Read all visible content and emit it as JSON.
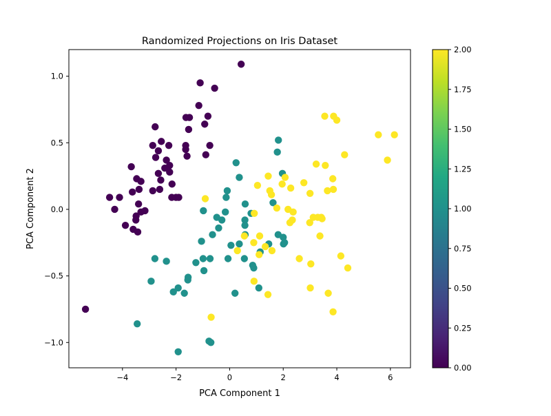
{
  "chart_data": {
    "type": "scatter",
    "title": "Randomized Projections on Iris Dataset",
    "xlabel": "PCA Component 1",
    "ylabel": "PCA Component 2",
    "xlim": [
      -6.0,
      6.75
    ],
    "ylim": [
      -1.19,
      1.2
    ],
    "xticks": [
      -4,
      -2,
      0,
      2,
      4,
      6
    ],
    "xtick_labels": [
      "−4",
      "−2",
      "0",
      "2",
      "4",
      "6"
    ],
    "yticks": [
      -1.0,
      -0.5,
      0.0,
      0.5,
      1.0
    ],
    "ytick_labels": [
      "−1.0",
      "−0.5",
      "0.0",
      "0.5",
      "1.0"
    ],
    "grid": false,
    "legend": "none",
    "colormap": "viridis",
    "colorbar": {
      "range": [
        0,
        2
      ],
      "ticks": [
        0,
        0.25,
        0.5,
        0.75,
        1.0,
        1.25,
        1.5,
        1.75,
        2.0
      ],
      "tick_labels": [
        "0.00",
        "0.25",
        "0.50",
        "0.75",
        "1.00",
        "1.25",
        "1.50",
        "1.75",
        "2.00"
      ]
    },
    "color_values": {
      "0": "#440154",
      "1": "#21918c",
      "2": "#fde725"
    },
    "points": [
      {
        "x": -5.38,
        "y": -0.75,
        "c": 0
      },
      {
        "x": -4.48,
        "y": 0.09,
        "c": 0
      },
      {
        "x": -4.11,
        "y": 0.09,
        "c": 0
      },
      {
        "x": -4.29,
        "y": 0.0,
        "c": 0
      },
      {
        "x": -3.67,
        "y": 0.32,
        "c": 0
      },
      {
        "x": -3.63,
        "y": 0.13,
        "c": 0
      },
      {
        "x": -3.47,
        "y": 0.23,
        "c": 0
      },
      {
        "x": -3.31,
        "y": 0.21,
        "c": 0
      },
      {
        "x": -3.38,
        "y": 0.15,
        "c": 0
      },
      {
        "x": -3.4,
        "y": 0.04,
        "c": 0
      },
      {
        "x": -3.31,
        "y": -0.02,
        "c": 0
      },
      {
        "x": -3.16,
        "y": -0.01,
        "c": 0
      },
      {
        "x": -3.49,
        "y": -0.05,
        "c": 0
      },
      {
        "x": -3.5,
        "y": -0.08,
        "c": 0
      },
      {
        "x": -3.89,
        "y": -0.12,
        "c": 0
      },
      {
        "x": -3.6,
        "y": -0.15,
        "c": 0
      },
      {
        "x": -3.43,
        "y": -0.17,
        "c": 0
      },
      {
        "x": -2.87,
        "y": 0.14,
        "c": 0
      },
      {
        "x": -2.61,
        "y": 0.15,
        "c": 0
      },
      {
        "x": -2.57,
        "y": 0.22,
        "c": 0
      },
      {
        "x": -2.66,
        "y": 0.27,
        "c": 0
      },
      {
        "x": -2.42,
        "y": 0.31,
        "c": 0
      },
      {
        "x": -2.24,
        "y": 0.28,
        "c": 0
      },
      {
        "x": -2.24,
        "y": 0.33,
        "c": 0
      },
      {
        "x": -2.36,
        "y": 0.37,
        "c": 0
      },
      {
        "x": -2.76,
        "y": 0.39,
        "c": 0
      },
      {
        "x": -2.66,
        "y": 0.44,
        "c": 0
      },
      {
        "x": -2.87,
        "y": 0.48,
        "c": 0
      },
      {
        "x": -2.55,
        "y": 0.51,
        "c": 0
      },
      {
        "x": -2.27,
        "y": 0.48,
        "c": 0
      },
      {
        "x": -2.78,
        "y": 0.62,
        "c": 0
      },
      {
        "x": -2.15,
        "y": 0.19,
        "c": 0
      },
      {
        "x": -2.16,
        "y": 0.09,
        "c": 0
      },
      {
        "x": -2.0,
        "y": 0.09,
        "c": 0
      },
      {
        "x": -1.9,
        "y": 0.09,
        "c": 0
      },
      {
        "x": -1.64,
        "y": 0.45,
        "c": 0
      },
      {
        "x": -1.64,
        "y": 0.48,
        "c": 0
      },
      {
        "x": -1.59,
        "y": 0.4,
        "c": 0
      },
      {
        "x": -1.63,
        "y": 0.69,
        "c": 0
      },
      {
        "x": -1.5,
        "y": 0.69,
        "c": 0
      },
      {
        "x": -1.53,
        "y": 0.6,
        "c": 0
      },
      {
        "x": -1.15,
        "y": 0.78,
        "c": 0
      },
      {
        "x": -1.1,
        "y": 0.95,
        "c": 0
      },
      {
        "x": -0.93,
        "y": 0.64,
        "c": 0
      },
      {
        "x": -0.81,
        "y": 0.7,
        "c": 0
      },
      {
        "x": -0.89,
        "y": 0.41,
        "c": 0
      },
      {
        "x": -0.74,
        "y": 0.48,
        "c": 0
      },
      {
        "x": -0.56,
        "y": 0.91,
        "c": 0
      },
      {
        "x": 0.43,
        "y": 1.09,
        "c": 0
      },
      {
        "x": -3.45,
        "y": -0.86,
        "c": 1
      },
      {
        "x": -2.93,
        "y": -0.54,
        "c": 1
      },
      {
        "x": -2.79,
        "y": -0.37,
        "c": 1
      },
      {
        "x": -2.36,
        "y": -0.39,
        "c": 1
      },
      {
        "x": -2.1,
        "y": -0.62,
        "c": 1
      },
      {
        "x": -1.92,
        "y": -0.59,
        "c": 1
      },
      {
        "x": -1.92,
        "y": -1.07,
        "c": 1
      },
      {
        "x": -1.69,
        "y": -0.63,
        "c": 1
      },
      {
        "x": -1.56,
        "y": -0.53,
        "c": 1
      },
      {
        "x": -1.55,
        "y": -0.51,
        "c": 1
      },
      {
        "x": -1.26,
        "y": -0.4,
        "c": 1
      },
      {
        "x": -1.05,
        "y": -0.24,
        "c": 1
      },
      {
        "x": -0.99,
        "y": -0.37,
        "c": 1
      },
      {
        "x": -0.96,
        "y": -0.46,
        "c": 1
      },
      {
        "x": -0.98,
        "y": -0.01,
        "c": 1
      },
      {
        "x": -0.77,
        "y": -0.99,
        "c": 1
      },
      {
        "x": -0.7,
        "y": -1.0,
        "c": 1
      },
      {
        "x": -0.73,
        "y": -0.37,
        "c": 1
      },
      {
        "x": -0.64,
        "y": -0.19,
        "c": 1
      },
      {
        "x": -0.48,
        "y": -0.06,
        "c": 1
      },
      {
        "x": -0.41,
        "y": -0.14,
        "c": 1
      },
      {
        "x": -0.29,
        "y": -0.08,
        "c": 1
      },
      {
        "x": -0.16,
        "y": -0.02,
        "c": 1
      },
      {
        "x": -0.13,
        "y": 0.09,
        "c": 1
      },
      {
        "x": -0.09,
        "y": 0.14,
        "c": 1
      },
      {
        "x": -0.06,
        "y": -0.37,
        "c": 1
      },
      {
        "x": 0.05,
        "y": -0.27,
        "c": 1
      },
      {
        "x": 0.24,
        "y": 0.35,
        "c": 1
      },
      {
        "x": 0.2,
        "y": -0.63,
        "c": 1
      },
      {
        "x": 0.36,
        "y": 0.24,
        "c": 1
      },
      {
        "x": 0.36,
        "y": -0.26,
        "c": 1
      },
      {
        "x": 0.58,
        "y": 0.04,
        "c": 1
      },
      {
        "x": 0.57,
        "y": -0.08,
        "c": 1
      },
      {
        "x": 0.57,
        "y": -0.12,
        "c": 1
      },
      {
        "x": 0.58,
        "y": -0.19,
        "c": 1
      },
      {
        "x": 0.55,
        "y": -0.37,
        "c": 1
      },
      {
        "x": 0.8,
        "y": -0.03,
        "c": 1
      },
      {
        "x": 0.86,
        "y": -0.42,
        "c": 1
      },
      {
        "x": 0.9,
        "y": -0.44,
        "c": 1
      },
      {
        "x": 1.09,
        "y": -0.59,
        "c": 1
      },
      {
        "x": 1.14,
        "y": -0.32,
        "c": 1
      },
      {
        "x": 1.46,
        "y": -0.26,
        "c": 1
      },
      {
        "x": 1.62,
        "y": 0.05,
        "c": 1
      },
      {
        "x": 1.78,
        "y": 0.43,
        "c": 1
      },
      {
        "x": 1.82,
        "y": 0.52,
        "c": 1
      },
      {
        "x": 1.81,
        "y": -0.19,
        "c": 1
      },
      {
        "x": 1.97,
        "y": 0.27,
        "c": 1
      },
      {
        "x": 2.0,
        "y": -0.21,
        "c": 1
      },
      {
        "x": 2.01,
        "y": -0.26,
        "c": 1
      },
      {
        "x": 2.05,
        "y": -0.25,
        "c": 1
      },
      {
        "x": -0.91,
        "y": 0.08,
        "c": 2
      },
      {
        "x": -0.69,
        "y": -0.81,
        "c": 2
      },
      {
        "x": 0.29,
        "y": -0.31,
        "c": 2
      },
      {
        "x": 0.55,
        "y": -0.2,
        "c": 2
      },
      {
        "x": 0.92,
        "y": -0.03,
        "c": 2
      },
      {
        "x": 0.9,
        "y": -0.25,
        "c": 2
      },
      {
        "x": 0.91,
        "y": -0.54,
        "c": 2
      },
      {
        "x": 1.04,
        "y": 0.18,
        "c": 2
      },
      {
        "x": 1.12,
        "y": -0.2,
        "c": 2
      },
      {
        "x": 1.1,
        "y": -0.34,
        "c": 2
      },
      {
        "x": 1.33,
        "y": -0.28,
        "c": 2
      },
      {
        "x": 1.44,
        "y": 0.25,
        "c": 2
      },
      {
        "x": 1.43,
        "y": -0.64,
        "c": 2
      },
      {
        "x": 1.5,
        "y": 0.14,
        "c": 2
      },
      {
        "x": 1.56,
        "y": 0.11,
        "c": 2
      },
      {
        "x": 1.58,
        "y": -0.31,
        "c": 2
      },
      {
        "x": 1.76,
        "y": 0.01,
        "c": 2
      },
      {
        "x": 1.96,
        "y": 0.19,
        "c": 2
      },
      {
        "x": 2.07,
        "y": 0.24,
        "c": 2
      },
      {
        "x": 2.18,
        "y": 0.0,
        "c": 2
      },
      {
        "x": 2.25,
        "y": -0.1,
        "c": 2
      },
      {
        "x": 2.28,
        "y": 0.16,
        "c": 2
      },
      {
        "x": 2.34,
        "y": -0.08,
        "c": 2
      },
      {
        "x": 2.37,
        "y": -0.02,
        "c": 2
      },
      {
        "x": 2.6,
        "y": -0.37,
        "c": 2
      },
      {
        "x": 2.77,
        "y": 0.2,
        "c": 2
      },
      {
        "x": 2.99,
        "y": -0.1,
        "c": 2
      },
      {
        "x": 3.0,
        "y": 0.12,
        "c": 2
      },
      {
        "x": 3.03,
        "y": -0.41,
        "c": 2
      },
      {
        "x": 3.01,
        "y": -0.59,
        "c": 2
      },
      {
        "x": 3.12,
        "y": -0.06,
        "c": 2
      },
      {
        "x": 3.23,
        "y": 0.34,
        "c": 2
      },
      {
        "x": 3.29,
        "y": -0.06,
        "c": 2
      },
      {
        "x": 3.37,
        "y": -0.2,
        "c": 2
      },
      {
        "x": 3.42,
        "y": -0.06,
        "c": 2
      },
      {
        "x": 3.45,
        "y": -0.07,
        "c": 2
      },
      {
        "x": 3.55,
        "y": 0.7,
        "c": 2
      },
      {
        "x": 3.57,
        "y": 0.33,
        "c": 2
      },
      {
        "x": 3.65,
        "y": 0.14,
        "c": 2
      },
      {
        "x": 3.68,
        "y": -0.63,
        "c": 2
      },
      {
        "x": 3.85,
        "y": 0.23,
        "c": 2
      },
      {
        "x": 3.87,
        "y": 0.15,
        "c": 2
      },
      {
        "x": 3.88,
        "y": 0.7,
        "c": 2
      },
      {
        "x": 3.86,
        "y": -0.77,
        "c": 2
      },
      {
        "x": 4.0,
        "y": 0.67,
        "c": 2
      },
      {
        "x": 4.15,
        "y": -0.35,
        "c": 2
      },
      {
        "x": 4.29,
        "y": 0.41,
        "c": 2
      },
      {
        "x": 4.41,
        "y": -0.44,
        "c": 2
      },
      {
        "x": 5.55,
        "y": 0.56,
        "c": 2
      },
      {
        "x": 5.89,
        "y": 0.37,
        "c": 2
      },
      {
        "x": 6.15,
        "y": 0.56,
        "c": 2
      }
    ]
  }
}
